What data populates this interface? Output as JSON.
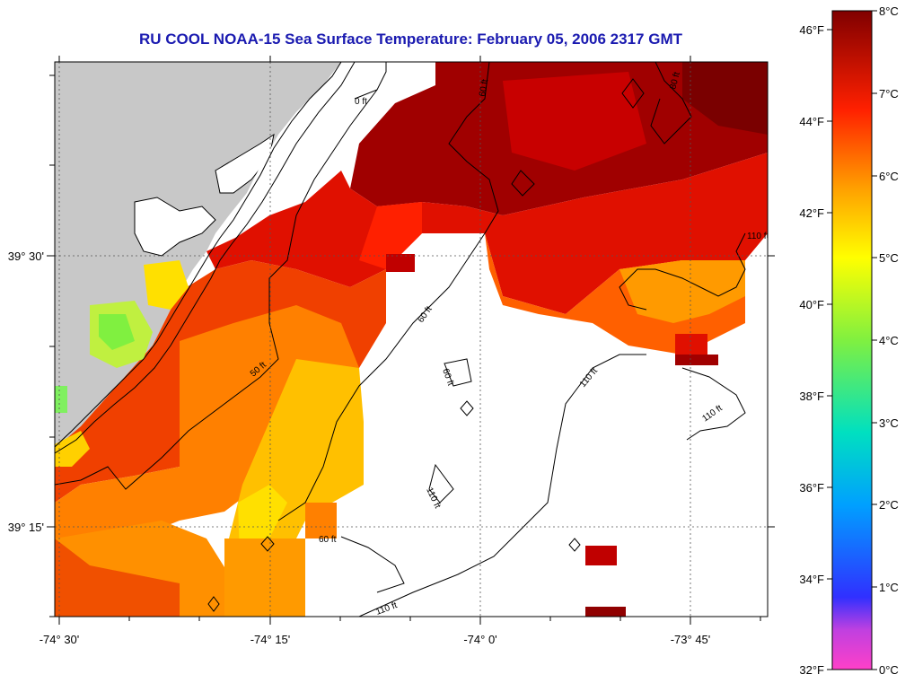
{
  "title": "RU COOL  NOAA-15  Sea Surface Temperature:  February 05, 2006 2317 GMT",
  "chart_data": {
    "type": "heatmap",
    "title": "RU COOL  NOAA-15  Sea Surface Temperature:  February 05, 2006 2317 GMT",
    "x_ticks": [
      "-74° 30'",
      "-74° 15'",
      "-74° 0'",
      "-73° 45'"
    ],
    "y_ticks": [
      "39° 30'",
      "39° 15'"
    ],
    "contour_labels": [
      "0 ft",
      "50 ft",
      "60 ft",
      "60 ft",
      "60 ft",
      "60 ft",
      "80 ft",
      "110 ft",
      "110 ft",
      "110 ft",
      "110 ft",
      "110 ft"
    ],
    "colorbar": {
      "fahrenheit_labels": [
        "46°F",
        "44°F",
        "42°F",
        "40°F",
        "38°F",
        "36°F",
        "34°F",
        "32°F"
      ],
      "celsius_labels": [
        "8°C",
        "7°C",
        "6°C",
        "5°C",
        "4°C",
        "3°C",
        "2°C",
        "1°C",
        "0°C"
      ],
      "range_celsius": [
        0,
        8
      ]
    },
    "grid": true
  },
  "colors": {
    "land": "#c8c8c8",
    "no_data": "#ffffff",
    "title": "#1a1ab0"
  }
}
